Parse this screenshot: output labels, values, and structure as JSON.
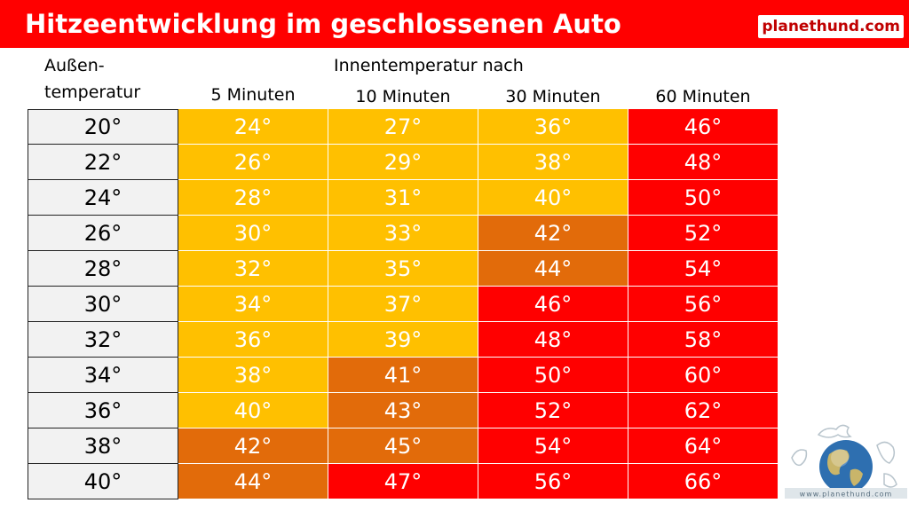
{
  "title": "Hitzeentwicklung im geschlossenen Auto",
  "brand": "planethund.com",
  "logo_text": "www.planethund.com",
  "colors": {
    "title_bar": "#ff0000",
    "level_warm": "#ffc000",
    "level_hot": "#e26b0a",
    "level_danger": "#ff0000",
    "outside_cell": "#f2f2f2"
  },
  "chart_data": {
    "type": "table",
    "title": "Hitzeentwicklung im geschlossenen Auto",
    "row_header_label": [
      "Außen-",
      "temperatur"
    ],
    "column_group_label": "Innentemperatur nach",
    "columns": [
      "5 Minuten",
      "10 Minuten",
      "30 Minuten",
      "60 Minuten"
    ],
    "rows": [
      {
        "outside": "20°",
        "values": [
          "24°",
          "27°",
          "36°",
          "46°"
        ],
        "levels": [
          "warm",
          "warm",
          "warm",
          "danger"
        ]
      },
      {
        "outside": "22°",
        "values": [
          "26°",
          "29°",
          "38°",
          "48°"
        ],
        "levels": [
          "warm",
          "warm",
          "warm",
          "danger"
        ]
      },
      {
        "outside": "24°",
        "values": [
          "28°",
          "31°",
          "40°",
          "50°"
        ],
        "levels": [
          "warm",
          "warm",
          "warm",
          "danger"
        ]
      },
      {
        "outside": "26°",
        "values": [
          "30°",
          "33°",
          "42°",
          "52°"
        ],
        "levels": [
          "warm",
          "warm",
          "hot",
          "danger"
        ]
      },
      {
        "outside": "28°",
        "values": [
          "32°",
          "35°",
          "44°",
          "54°"
        ],
        "levels": [
          "warm",
          "warm",
          "hot",
          "danger"
        ]
      },
      {
        "outside": "30°",
        "values": [
          "34°",
          "37°",
          "46°",
          "56°"
        ],
        "levels": [
          "warm",
          "warm",
          "danger",
          "danger"
        ]
      },
      {
        "outside": "32°",
        "values": [
          "36°",
          "39°",
          "48°",
          "58°"
        ],
        "levels": [
          "warm",
          "warm",
          "danger",
          "danger"
        ]
      },
      {
        "outside": "34°",
        "values": [
          "38°",
          "41°",
          "50°",
          "60°"
        ],
        "levels": [
          "warm",
          "hot",
          "danger",
          "danger"
        ]
      },
      {
        "outside": "36°",
        "values": [
          "40°",
          "43°",
          "52°",
          "62°"
        ],
        "levels": [
          "warm",
          "hot",
          "danger",
          "danger"
        ]
      },
      {
        "outside": "38°",
        "values": [
          "42°",
          "45°",
          "54°",
          "64°"
        ],
        "levels": [
          "hot",
          "hot",
          "danger",
          "danger"
        ]
      },
      {
        "outside": "40°",
        "values": [
          "44°",
          "47°",
          "56°",
          "66°"
        ],
        "levels": [
          "hot",
          "danger",
          "danger",
          "danger"
        ]
      }
    ]
  }
}
